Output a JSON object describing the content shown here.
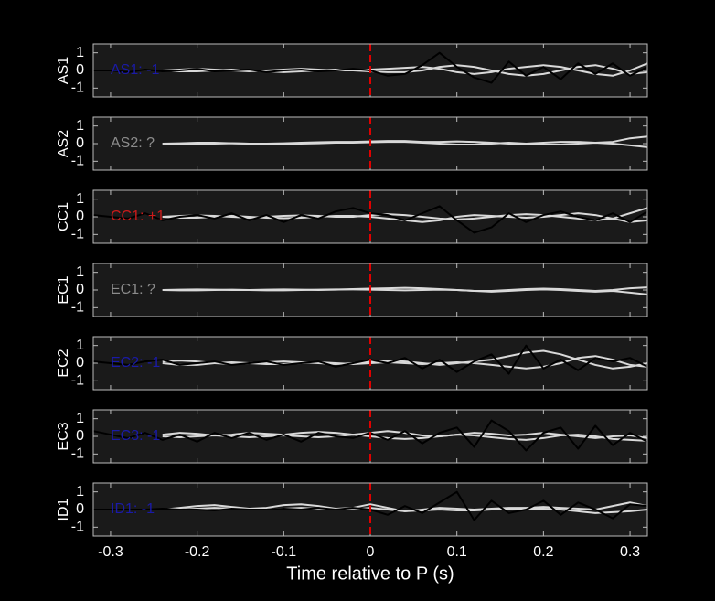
{
  "chart_data": [
    {
      "type": "line",
      "ylabel": "AS1",
      "annotation": {
        "text": "AS1: -1",
        "color": "#1a1aa8"
      },
      "vline": 0,
      "vline_color": "#e00000",
      "xlim": [
        -0.32,
        0.32
      ],
      "ylim": [
        -1.5,
        1.5
      ],
      "yticks": [
        -1,
        0,
        1
      ],
      "x": [
        -0.32,
        -0.3,
        -0.28,
        -0.26,
        -0.24,
        -0.22,
        -0.2,
        -0.18,
        -0.16,
        -0.14,
        -0.12,
        -0.1,
        -0.08,
        -0.06,
        -0.04,
        -0.02,
        0,
        0.02,
        0.04,
        0.06,
        0.08,
        0.1,
        0.12,
        0.14,
        0.16,
        0.18,
        0.2,
        0.22,
        0.24,
        0.26,
        0.28,
        0.3,
        0.32
      ],
      "series": [
        {
          "color": "#d9d9d9",
          "values": [
            null,
            null,
            null,
            null,
            0,
            0.05,
            0.1,
            0.05,
            0,
            -0.05,
            0,
            0.05,
            0.1,
            0.05,
            0,
            0,
            0.05,
            0.1,
            0.15,
            0.2,
            0.1,
            -0.1,
            -0.2,
            -0.1,
            0.1,
            0.2,
            0.3,
            0.2,
            0,
            -0.2,
            -0.3,
            0,
            0.4
          ]
        },
        {
          "color": "#d9d9d9",
          "values": [
            null,
            null,
            null,
            null,
            0,
            -0.05,
            -0.05,
            0,
            0.05,
            0,
            -0.05,
            -0.1,
            -0.05,
            0,
            0.05,
            0,
            -0.05,
            -0.1,
            -0.1,
            0,
            0.2,
            0.3,
            0.2,
            0,
            -0.2,
            -0.3,
            -0.2,
            0,
            0.2,
            0.3,
            0.1,
            -0.2,
            -0.1
          ]
        },
        {
          "color": "#000000",
          "values": [
            0,
            0,
            -0.1,
            0.05,
            -0.05,
            0,
            0.1,
            -0.05,
            0,
            0.05,
            -0.1,
            0,
            0.05,
            -0.05,
            0,
            0.1,
            0,
            -0.3,
            -0.2,
            0.3,
            1.0,
            0.2,
            -0.4,
            -0.7,
            0.5,
            -0.3,
            0.2,
            -0.5,
            0.4,
            -0.2,
            0.4,
            -0.3,
            0.2
          ]
        }
      ]
    },
    {
      "type": "line",
      "ylabel": "AS2",
      "annotation": {
        "text": "AS2: ?",
        "color": "#8c8c8c"
      },
      "vline": 0,
      "vline_color": "#e00000",
      "xlim": [
        -0.32,
        0.32
      ],
      "ylim": [
        -1.5,
        1.5
      ],
      "yticks": [
        -1,
        0,
        1
      ],
      "x": [
        -0.32,
        -0.3,
        -0.28,
        -0.26,
        -0.24,
        -0.22,
        -0.2,
        -0.18,
        -0.16,
        -0.14,
        -0.12,
        -0.1,
        -0.08,
        -0.06,
        -0.04,
        -0.02,
        0,
        0.02,
        0.04,
        0.06,
        0.08,
        0.1,
        0.12,
        0.14,
        0.16,
        0.18,
        0.2,
        0.22,
        0.24,
        0.26,
        0.28,
        0.3,
        0.32
      ],
      "series": [
        {
          "color": "#d9d9d9",
          "values": [
            null,
            null,
            null,
            null,
            0,
            0.02,
            0.05,
            0.05,
            0.02,
            0,
            0,
            0.02,
            0.05,
            0.08,
            0.1,
            0.1,
            0.12,
            0.15,
            0.15,
            0.1,
            0.1,
            0.12,
            0.1,
            0.05,
            0,
            0,
            0.05,
            0.1,
            0.1,
            0.05,
            0.1,
            0.3,
            0.4
          ]
        },
        {
          "color": "#d9d9d9",
          "values": [
            null,
            null,
            null,
            null,
            0,
            -0.02,
            -0.03,
            0,
            0.02,
            0,
            -0.02,
            -0.02,
            0,
            0.02,
            0.05,
            0.05,
            0.08,
            0.1,
            0.1,
            0.05,
            0,
            -0.05,
            -0.05,
            0,
            0.05,
            0,
            -0.05,
            -0.05,
            0,
            0.05,
            0,
            -0.1,
            -0.2
          ]
        }
      ]
    },
    {
      "type": "line",
      "ylabel": "CC1",
      "annotation": {
        "text": "CC1: +1",
        "color": "#cc1a1a"
      },
      "vline": 0,
      "vline_color": "#e00000",
      "xlim": [
        -0.32,
        0.32
      ],
      "ylim": [
        -1.5,
        1.5
      ],
      "yticks": [
        -1,
        0,
        1
      ],
      "x": [
        -0.32,
        -0.3,
        -0.28,
        -0.26,
        -0.24,
        -0.22,
        -0.2,
        -0.18,
        -0.16,
        -0.14,
        -0.12,
        -0.1,
        -0.08,
        -0.06,
        -0.04,
        -0.02,
        0,
        0.02,
        0.04,
        0.06,
        0.08,
        0.1,
        0.12,
        0.14,
        0.16,
        0.18,
        0.2,
        0.22,
        0.24,
        0.26,
        0.28,
        0.3,
        0.32
      ],
      "series": [
        {
          "color": "#d9d9d9",
          "values": [
            null,
            null,
            null,
            null,
            0,
            0.05,
            0.08,
            0.05,
            0,
            -0.05,
            0,
            0.05,
            0.08,
            0.05,
            0,
            0,
            0.1,
            0.15,
            0.1,
            0,
            -0.1,
            -0.15,
            -0.1,
            0,
            0.1,
            0.15,
            0.1,
            0,
            -0.1,
            -0.2,
            -0.1,
            0.2,
            0.5
          ]
        },
        {
          "color": "#d9d9d9",
          "values": [
            null,
            null,
            null,
            null,
            0,
            -0.05,
            -0.05,
            0,
            0.05,
            0,
            -0.05,
            -0.08,
            -0.05,
            0,
            0.05,
            0.05,
            0,
            -0.1,
            -0.2,
            -0.3,
            -0.2,
            0,
            0.1,
            0.05,
            0,
            -0.05,
            0,
            0.1,
            0.2,
            0.1,
            -0.1,
            -0.3,
            -0.2
          ]
        },
        {
          "color": "#000000",
          "values": [
            0.1,
            0,
            -0.1,
            0.2,
            -0.2,
            0,
            0.1,
            -0.1,
            0.2,
            -0.2,
            0.1,
            -0.3,
            0.1,
            -0.1,
            0.3,
            0.5,
            0.2,
            0.1,
            -0.2,
            0.2,
            0.6,
            -0.2,
            -0.9,
            -0.6,
            0.2,
            -0.3,
            0.1,
            0.3,
            0,
            -0.2,
            0.2,
            -0.3,
            0.3
          ]
        }
      ]
    },
    {
      "type": "line",
      "ylabel": "EC1",
      "annotation": {
        "text": "EC1: ?",
        "color": "#8c8c8c"
      },
      "vline": 0,
      "vline_color": "#e00000",
      "xlim": [
        -0.32,
        0.32
      ],
      "ylim": [
        -1.5,
        1.5
      ],
      "yticks": [
        -1,
        0,
        1
      ],
      "x": [
        -0.32,
        -0.3,
        -0.28,
        -0.26,
        -0.24,
        -0.22,
        -0.2,
        -0.18,
        -0.16,
        -0.14,
        -0.12,
        -0.1,
        -0.08,
        -0.06,
        -0.04,
        -0.02,
        0,
        0.02,
        0.04,
        0.06,
        0.08,
        0.1,
        0.12,
        0.14,
        0.16,
        0.18,
        0.2,
        0.22,
        0.24,
        0.26,
        0.28,
        0.3,
        0.32
      ],
      "series": [
        {
          "color": "#d9d9d9",
          "values": [
            null,
            null,
            null,
            null,
            0,
            0.02,
            0.03,
            0.02,
            0,
            0,
            0.02,
            0.03,
            0.02,
            0,
            0.02,
            0.05,
            0.08,
            0.1,
            0.12,
            0.1,
            0.05,
            0,
            -0.05,
            -0.05,
            0,
            0.05,
            0.08,
            0.05,
            0,
            -0.05,
            0,
            0.1,
            0.15
          ]
        },
        {
          "color": "#d9d9d9",
          "values": [
            null,
            null,
            null,
            null,
            0,
            -0.02,
            -0.02,
            0,
            0.02,
            0,
            -0.02,
            -0.02,
            0,
            0.02,
            0.03,
            0.03,
            0.02,
            0,
            -0.02,
            0,
            0.02,
            0,
            -0.05,
            -0.1,
            -0.05,
            0,
            0.03,
            0,
            -0.05,
            -0.1,
            -0.05,
            -0.15,
            -0.25
          ]
        }
      ]
    },
    {
      "type": "line",
      "ylabel": "EC2",
      "annotation": {
        "text": "EC2: -1",
        "color": "#1a1aa8"
      },
      "vline": 0,
      "vline_color": "#e00000",
      "xlim": [
        -0.32,
        0.32
      ],
      "ylim": [
        -1.5,
        1.5
      ],
      "yticks": [
        -1,
        0,
        1
      ],
      "x": [
        -0.32,
        -0.3,
        -0.28,
        -0.26,
        -0.24,
        -0.22,
        -0.2,
        -0.18,
        -0.16,
        -0.14,
        -0.12,
        -0.1,
        -0.08,
        -0.06,
        -0.04,
        -0.02,
        0,
        0.02,
        0.04,
        0.06,
        0.08,
        0.1,
        0.12,
        0.14,
        0.16,
        0.18,
        0.2,
        0.22,
        0.24,
        0.26,
        0.28,
        0.3,
        0.32
      ],
      "series": [
        {
          "color": "#d9d9d9",
          "values": [
            null,
            null,
            null,
            null,
            0.1,
            0.15,
            0.1,
            0,
            -0.05,
            0,
            0.05,
            0.1,
            0.05,
            0,
            -0.05,
            0,
            0.1,
            0.15,
            0.1,
            0,
            -0.1,
            0,
            0.1,
            0.2,
            0.4,
            0.6,
            0.7,
            0.5,
            0.2,
            -0.1,
            -0.3,
            -0.2,
            0
          ]
        },
        {
          "color": "#d9d9d9",
          "values": [
            null,
            null,
            null,
            null,
            0,
            -0.1,
            -0.1,
            0,
            0.05,
            0,
            -0.05,
            -0.05,
            0,
            0.05,
            0,
            -0.05,
            0,
            0.05,
            0,
            -0.05,
            0,
            0.05,
            0,
            -0.1,
            -0.2,
            -0.3,
            -0.2,
            0,
            0.3,
            0.4,
            0.2,
            -0.1,
            -0.2
          ]
        },
        {
          "color": "#000000",
          "values": [
            0.1,
            0,
            -0.1,
            0.1,
            0.2,
            -0.1,
            0,
            0.1,
            -0.1,
            0,
            0.1,
            -0.1,
            0,
            0.1,
            -0.2,
            0,
            0.2,
            0,
            0.3,
            -0.3,
            0.2,
            -0.5,
            0.1,
            0.5,
            -0.6,
            1.0,
            -0.3,
            0.2,
            -0.4,
            0.3,
            0.1,
            0.3,
            -0.2
          ]
        }
      ]
    },
    {
      "type": "line",
      "ylabel": "EC3",
      "annotation": {
        "text": "EC3: -1",
        "color": "#1a1aa8"
      },
      "vline": 0,
      "vline_color": "#e00000",
      "xlim": [
        -0.32,
        0.32
      ],
      "ylim": [
        -1.5,
        1.5
      ],
      "yticks": [
        -1,
        0,
        1
      ],
      "x": [
        -0.32,
        -0.3,
        -0.28,
        -0.26,
        -0.24,
        -0.22,
        -0.2,
        -0.18,
        -0.16,
        -0.14,
        -0.12,
        -0.1,
        -0.08,
        -0.06,
        -0.04,
        -0.02,
        0,
        0.02,
        0.04,
        0.06,
        0.08,
        0.1,
        0.12,
        0.14,
        0.16,
        0.18,
        0.2,
        0.22,
        0.24,
        0.26,
        0.28,
        0.3,
        0.32
      ],
      "series": [
        {
          "color": "#d9d9d9",
          "values": [
            null,
            null,
            null,
            null,
            0.1,
            0.2,
            0.15,
            0.05,
            0.1,
            0.2,
            0.15,
            0.1,
            0.2,
            0.25,
            0.2,
            0.1,
            0.2,
            0.3,
            0.2,
            0.05,
            0,
            0.1,
            0.2,
            0.15,
            0.05,
            0.1,
            0.2,
            0.1,
            0,
            -0.1,
            0,
            0.05,
            -0.1
          ]
        },
        {
          "color": "#d9d9d9",
          "values": [
            null,
            null,
            null,
            null,
            0,
            -0.05,
            0,
            0.05,
            0,
            -0.05,
            0,
            0.05,
            0,
            -0.05,
            0,
            0.1,
            0,
            -0.1,
            -0.15,
            -0.1,
            0,
            0.1,
            0.05,
            -0.05,
            -0.15,
            -0.2,
            -0.1,
            0.05,
            0.1,
            0,
            -0.15,
            -0.2,
            -0.25
          ]
        },
        {
          "color": "#000000",
          "values": [
            0.3,
            0.1,
            -0.1,
            0.2,
            -0.2,
            0.1,
            -0.3,
            0.2,
            -0.1,
            0.2,
            -0.2,
            0.1,
            -0.3,
            0.2,
            0,
            -0.1,
            0.2,
            -0.2,
            0.3,
            -0.4,
            0.2,
            0.5,
            -0.6,
            0.9,
            0.3,
            -0.8,
            0.2,
            0.5,
            -0.7,
            0.6,
            -0.5,
            0.2,
            -0.3
          ]
        }
      ]
    },
    {
      "type": "line",
      "ylabel": "ID1",
      "annotation": {
        "text": "ID1: -1",
        "color": "#1a1aa8"
      },
      "vline": 0,
      "vline_color": "#e00000",
      "xlim": [
        -0.32,
        0.32
      ],
      "ylim": [
        -1.5,
        1.5
      ],
      "yticks": [
        -1,
        0,
        1
      ],
      "xticks": [
        -0.3,
        -0.2,
        -0.1,
        0,
        0.1,
        0.2,
        0.3
      ],
      "xlabel": "Time relative to P (s)",
      "x": [
        -0.32,
        -0.3,
        -0.28,
        -0.26,
        -0.24,
        -0.22,
        -0.2,
        -0.18,
        -0.16,
        -0.14,
        -0.12,
        -0.1,
        -0.08,
        -0.06,
        -0.04,
        -0.02,
        0,
        0.02,
        0.04,
        0.06,
        0.08,
        0.1,
        0.12,
        0.14,
        0.16,
        0.18,
        0.2,
        0.22,
        0.24,
        0.26,
        0.28,
        0.3,
        0.32
      ],
      "series": [
        {
          "color": "#d9d9d9",
          "values": [
            null,
            null,
            null,
            null,
            0,
            0.1,
            0.2,
            0.25,
            0.15,
            0.05,
            0.1,
            0.25,
            0.3,
            0.2,
            0.05,
            0.1,
            0.3,
            0.1,
            -0.1,
            0,
            0.1,
            0.05,
            0,
            0.05,
            0.1,
            0.1,
            0.15,
            0.1,
            0.05,
            0,
            0.2,
            0.4,
            0.2
          ]
        },
        {
          "color": "#d9d9d9",
          "values": [
            null,
            null,
            null,
            null,
            0,
            0,
            0.05,
            0.1,
            0.05,
            0,
            0,
            0.05,
            0.1,
            0.05,
            0,
            0,
            0.1,
            0,
            -0.1,
            -0.05,
            0,
            -0.05,
            -0.05,
            0,
            0,
            0.05,
            0.05,
            0,
            -0.1,
            -0.2,
            -0.15,
            -0.1,
            0
          ]
        },
        {
          "color": "#000000",
          "values": [
            0,
            0,
            0,
            0,
            0.05,
            0,
            0,
            -0.05,
            0.05,
            0,
            0,
            0.05,
            0,
            0.1,
            0,
            0.1,
            0,
            -0.3,
            0.2,
            -0.2,
            0.4,
            1.0,
            -0.6,
            0.5,
            -0.2,
            0,
            0.5,
            -0.3,
            0.4,
            0,
            -0.5,
            0.3,
            0.2
          ]
        }
      ]
    }
  ]
}
